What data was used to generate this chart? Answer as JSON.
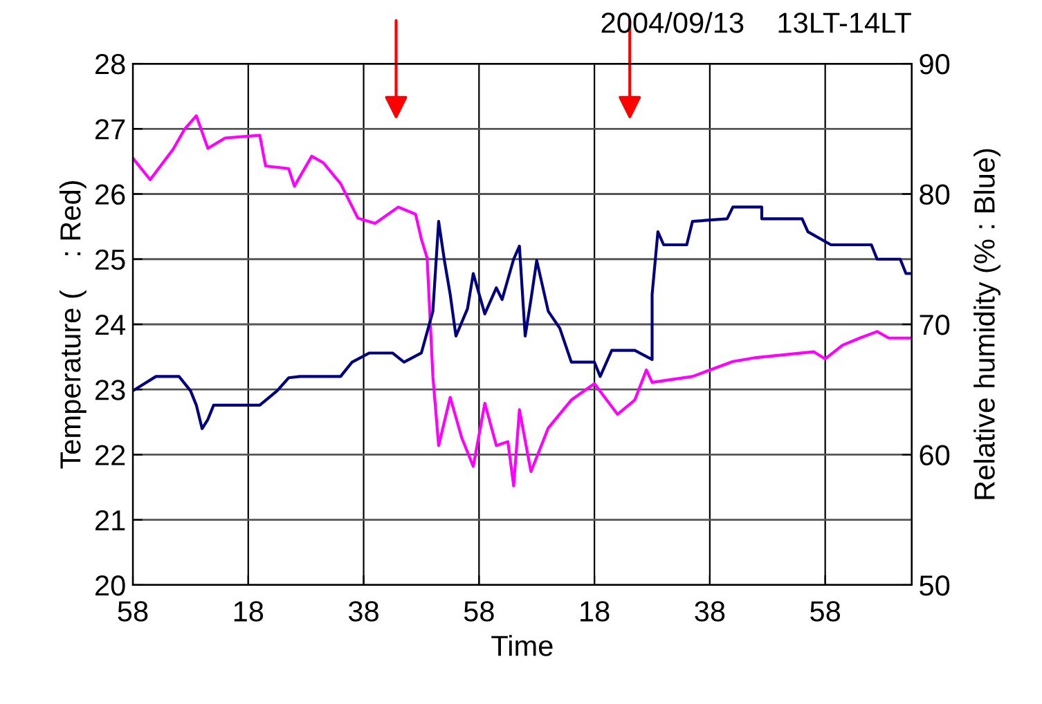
{
  "chart_data": {
    "type": "line",
    "title": "2004/09/13    13LT-14LT",
    "xlabel": "Time",
    "ylabel": "Temperature (    : Red)",
    "y2label": "Relative humidity (% : Blue)",
    "xlim": [
      "2004-09-13T12:58",
      "2004-09-13T15:13"
    ],
    "xticks": [
      {
        "value": "2004-09-13T12:58",
        "label": "58"
      },
      {
        "value": "2004-09-13T13:18",
        "label": "18"
      },
      {
        "value": "2004-09-13T13:38",
        "label": "38"
      },
      {
        "value": "2004-09-13T13:58",
        "label": "58"
      },
      {
        "value": "2004-09-13T14:18",
        "label": "18"
      },
      {
        "value": "2004-09-13T14:38",
        "label": "38"
      },
      {
        "value": "2004-09-13T14:58",
        "label": "58"
      }
    ],
    "ylim": [
      20,
      28
    ],
    "yticks": [
      20,
      21,
      22,
      23,
      24,
      25,
      26,
      27,
      28
    ],
    "y2lim": [
      50,
      90
    ],
    "y2ticks": [
      50,
      60,
      70,
      80,
      90
    ],
    "grid": true,
    "series": [
      {
        "color": "#ff00ff",
        "x": [
          "2004-09-13T12:58",
          "2004-09-13T13:01",
          "2004-09-13T13:05",
          "2004-09-13T13:07",
          "2004-09-13T13:09",
          "2004-09-13T13:11",
          "2004-09-13T13:14",
          "2004-09-13T13:20",
          "2004-09-13T13:21",
          "2004-09-13T13:25",
          "2004-09-13T13:26",
          "2004-09-13T13:29",
          "2004-09-13T13:31",
          "2004-09-13T13:34",
          "2004-09-13T13:37",
          "2004-09-13T13:40",
          "2004-09-13T13:44",
          "2004-09-13T13:47",
          "2004-09-13T13:48",
          "2004-09-13T13:49",
          "2004-09-13T13:50",
          "2004-09-13T13:51",
          "2004-09-13T13:53",
          "2004-09-13T13:55",
          "2004-09-13T13:57",
          "2004-09-13T13:59",
          "2004-09-13T14:01",
          "2004-09-13T14:03",
          "2004-09-13T14:04",
          "2004-09-13T14:05",
          "2004-09-13T14:07",
          "2004-09-13T14:10",
          "2004-09-13T14:14",
          "2004-09-13T14:18",
          "2004-09-13T14:22",
          "2004-09-13T14:25",
          "2004-09-13T14:27",
          "2004-09-13T14:28",
          "2004-09-13T14:35",
          "2004-09-13T14:38",
          "2004-09-13T14:42",
          "2004-09-13T14:46",
          "2004-09-13T14:56",
          "2004-09-13T14:58",
          "2004-09-13T15:01",
          "2004-09-13T15:04",
          "2004-09-13T15:07",
          "2004-09-13T15:09",
          "2004-09-13T15:13"
        ],
        "values": [
          26.55,
          26.22,
          26.69,
          27.0,
          27.2,
          26.7,
          26.86,
          26.9,
          26.43,
          26.39,
          26.12,
          26.58,
          26.48,
          26.16,
          25.63,
          25.55,
          25.8,
          25.69,
          25.31,
          25.02,
          23.2,
          22.14,
          22.88,
          22.26,
          21.82,
          22.79,
          22.14,
          22.2,
          21.52,
          22.69,
          21.74,
          22.41,
          22.84,
          23.09,
          22.62,
          22.84,
          23.3,
          23.11,
          23.2,
          23.3,
          23.43,
          23.49,
          23.58,
          23.47,
          23.68,
          23.79,
          23.89,
          23.79,
          23.79
        ]
      },
      {
        "color": "#000080",
        "axis": "y2",
        "x": [
          "2004-09-13T12:58",
          "2004-09-13T13:02",
          "2004-09-13T13:06",
          "2004-09-13T13:08",
          "2004-09-13T13:09",
          "2004-09-13T13:10",
          "2004-09-13T13:11",
          "2004-09-13T13:12",
          "2004-09-13T13:20",
          "2004-09-13T13:23",
          "2004-09-13T13:25",
          "2004-09-13T13:27",
          "2004-09-13T13:34",
          "2004-09-13T13:36",
          "2004-09-13T13:39",
          "2004-09-13T13:43",
          "2004-09-13T13:45",
          "2004-09-13T13:48",
          "2004-09-13T13:50",
          "2004-09-13T13:51",
          "2004-09-13T13:52",
          "2004-09-13T13:53",
          "2004-09-13T13:54",
          "2004-09-13T13:56",
          "2004-09-13T13:57",
          "2004-09-13T13:59",
          "2004-09-13T14:01",
          "2004-09-13T14:02",
          "2004-09-13T14:04",
          "2004-09-13T14:05",
          "2004-09-13T14:06",
          "2004-09-13T14:07",
          "2004-09-13T14:08",
          "2004-09-13T14:10",
          "2004-09-13T14:12",
          "2004-09-13T14:14",
          "2004-09-13T14:18",
          "2004-09-13T14:19",
          "2004-09-13T14:21",
          "2004-09-13T14:25",
          "2004-09-13T14:28",
          "2004-09-13T14:28",
          "2004-09-13T14:29",
          "2004-09-13T14:30",
          "2004-09-13T14:34",
          "2004-09-13T14:35",
          "2004-09-13T14:41",
          "2004-09-13T14:42",
          "2004-09-13T14:47",
          "2004-09-13T14:47",
          "2004-09-13T14:54",
          "2004-09-13T14:55",
          "2004-09-13T14:59",
          "2004-09-13T15:06",
          "2004-09-13T15:07",
          "2004-09-13T15:11",
          "2004-09-13T15:12",
          "2004-09-13T15:13"
        ],
        "values": [
          64.9,
          66.0,
          66.0,
          64.9,
          63.8,
          62.0,
          62.7,
          63.8,
          63.8,
          64.9,
          65.9,
          66.0,
          66.0,
          67.1,
          67.8,
          67.8,
          67.1,
          67.8,
          71.0,
          77.9,
          74.9,
          72.3,
          69.1,
          71.2,
          73.9,
          70.8,
          72.8,
          71.9,
          75.0,
          76.0,
          69.1,
          71.9,
          74.9,
          71.0,
          69.7,
          67.1,
          67.1,
          66.0,
          68.0,
          68.0,
          67.3,
          72.3,
          77.1,
          76.1,
          76.1,
          77.9,
          78.1,
          79.0,
          79.0,
          78.1,
          78.1,
          77.1,
          76.1,
          76.1,
          75.0,
          75.0,
          73.9,
          73.9
        ]
      }
    ]
  }
}
